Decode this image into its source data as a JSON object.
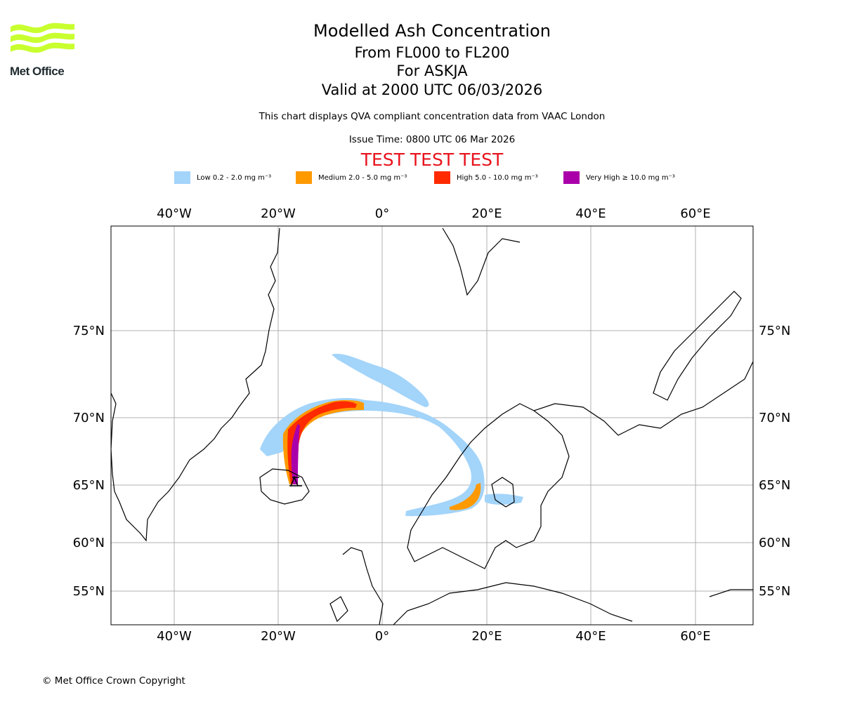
{
  "brand": {
    "name": "Met Office",
    "logo_color": "#c8ff2e"
  },
  "title": {
    "main": "Modelled Ash Concentration",
    "levels": "From FL000 to FL200",
    "volcano": "For ASKJA",
    "valid": "Valid at 2000 UTC 06/03/2026"
  },
  "subtitle": {
    "compliance": "This chart displays QVA compliant concentration data from VAAC London",
    "issue": "Issue Time: 0800 UTC 06 Mar 2026",
    "test_banner": "TEST TEST TEST"
  },
  "legend": [
    {
      "label": "Low 0.2 - 2.0 mg m⁻³",
      "color": "#a3d4fa"
    },
    {
      "label": "Medium 2.0 - 5.0 mg m⁻³",
      "color": "#ff9900"
    },
    {
      "label": "High 5.0 - 10.0 mg m⁻³",
      "color": "#ff2a00"
    },
    {
      "label": "Very High ≥ 10.0 mg m⁻³",
      "color": "#aa00aa"
    }
  ],
  "map": {
    "lon_ticks": [
      "40°W",
      "20°W",
      "0°",
      "20°E",
      "40°E",
      "60°E"
    ],
    "lat_ticks": [
      "75°N",
      "70°N",
      "65°N",
      "60°N",
      "55°N"
    ],
    "lon_range": [
      -52,
      71
    ],
    "gridlines": true
  },
  "footer": {
    "copyright": "© Met Office Crown Copyright"
  }
}
